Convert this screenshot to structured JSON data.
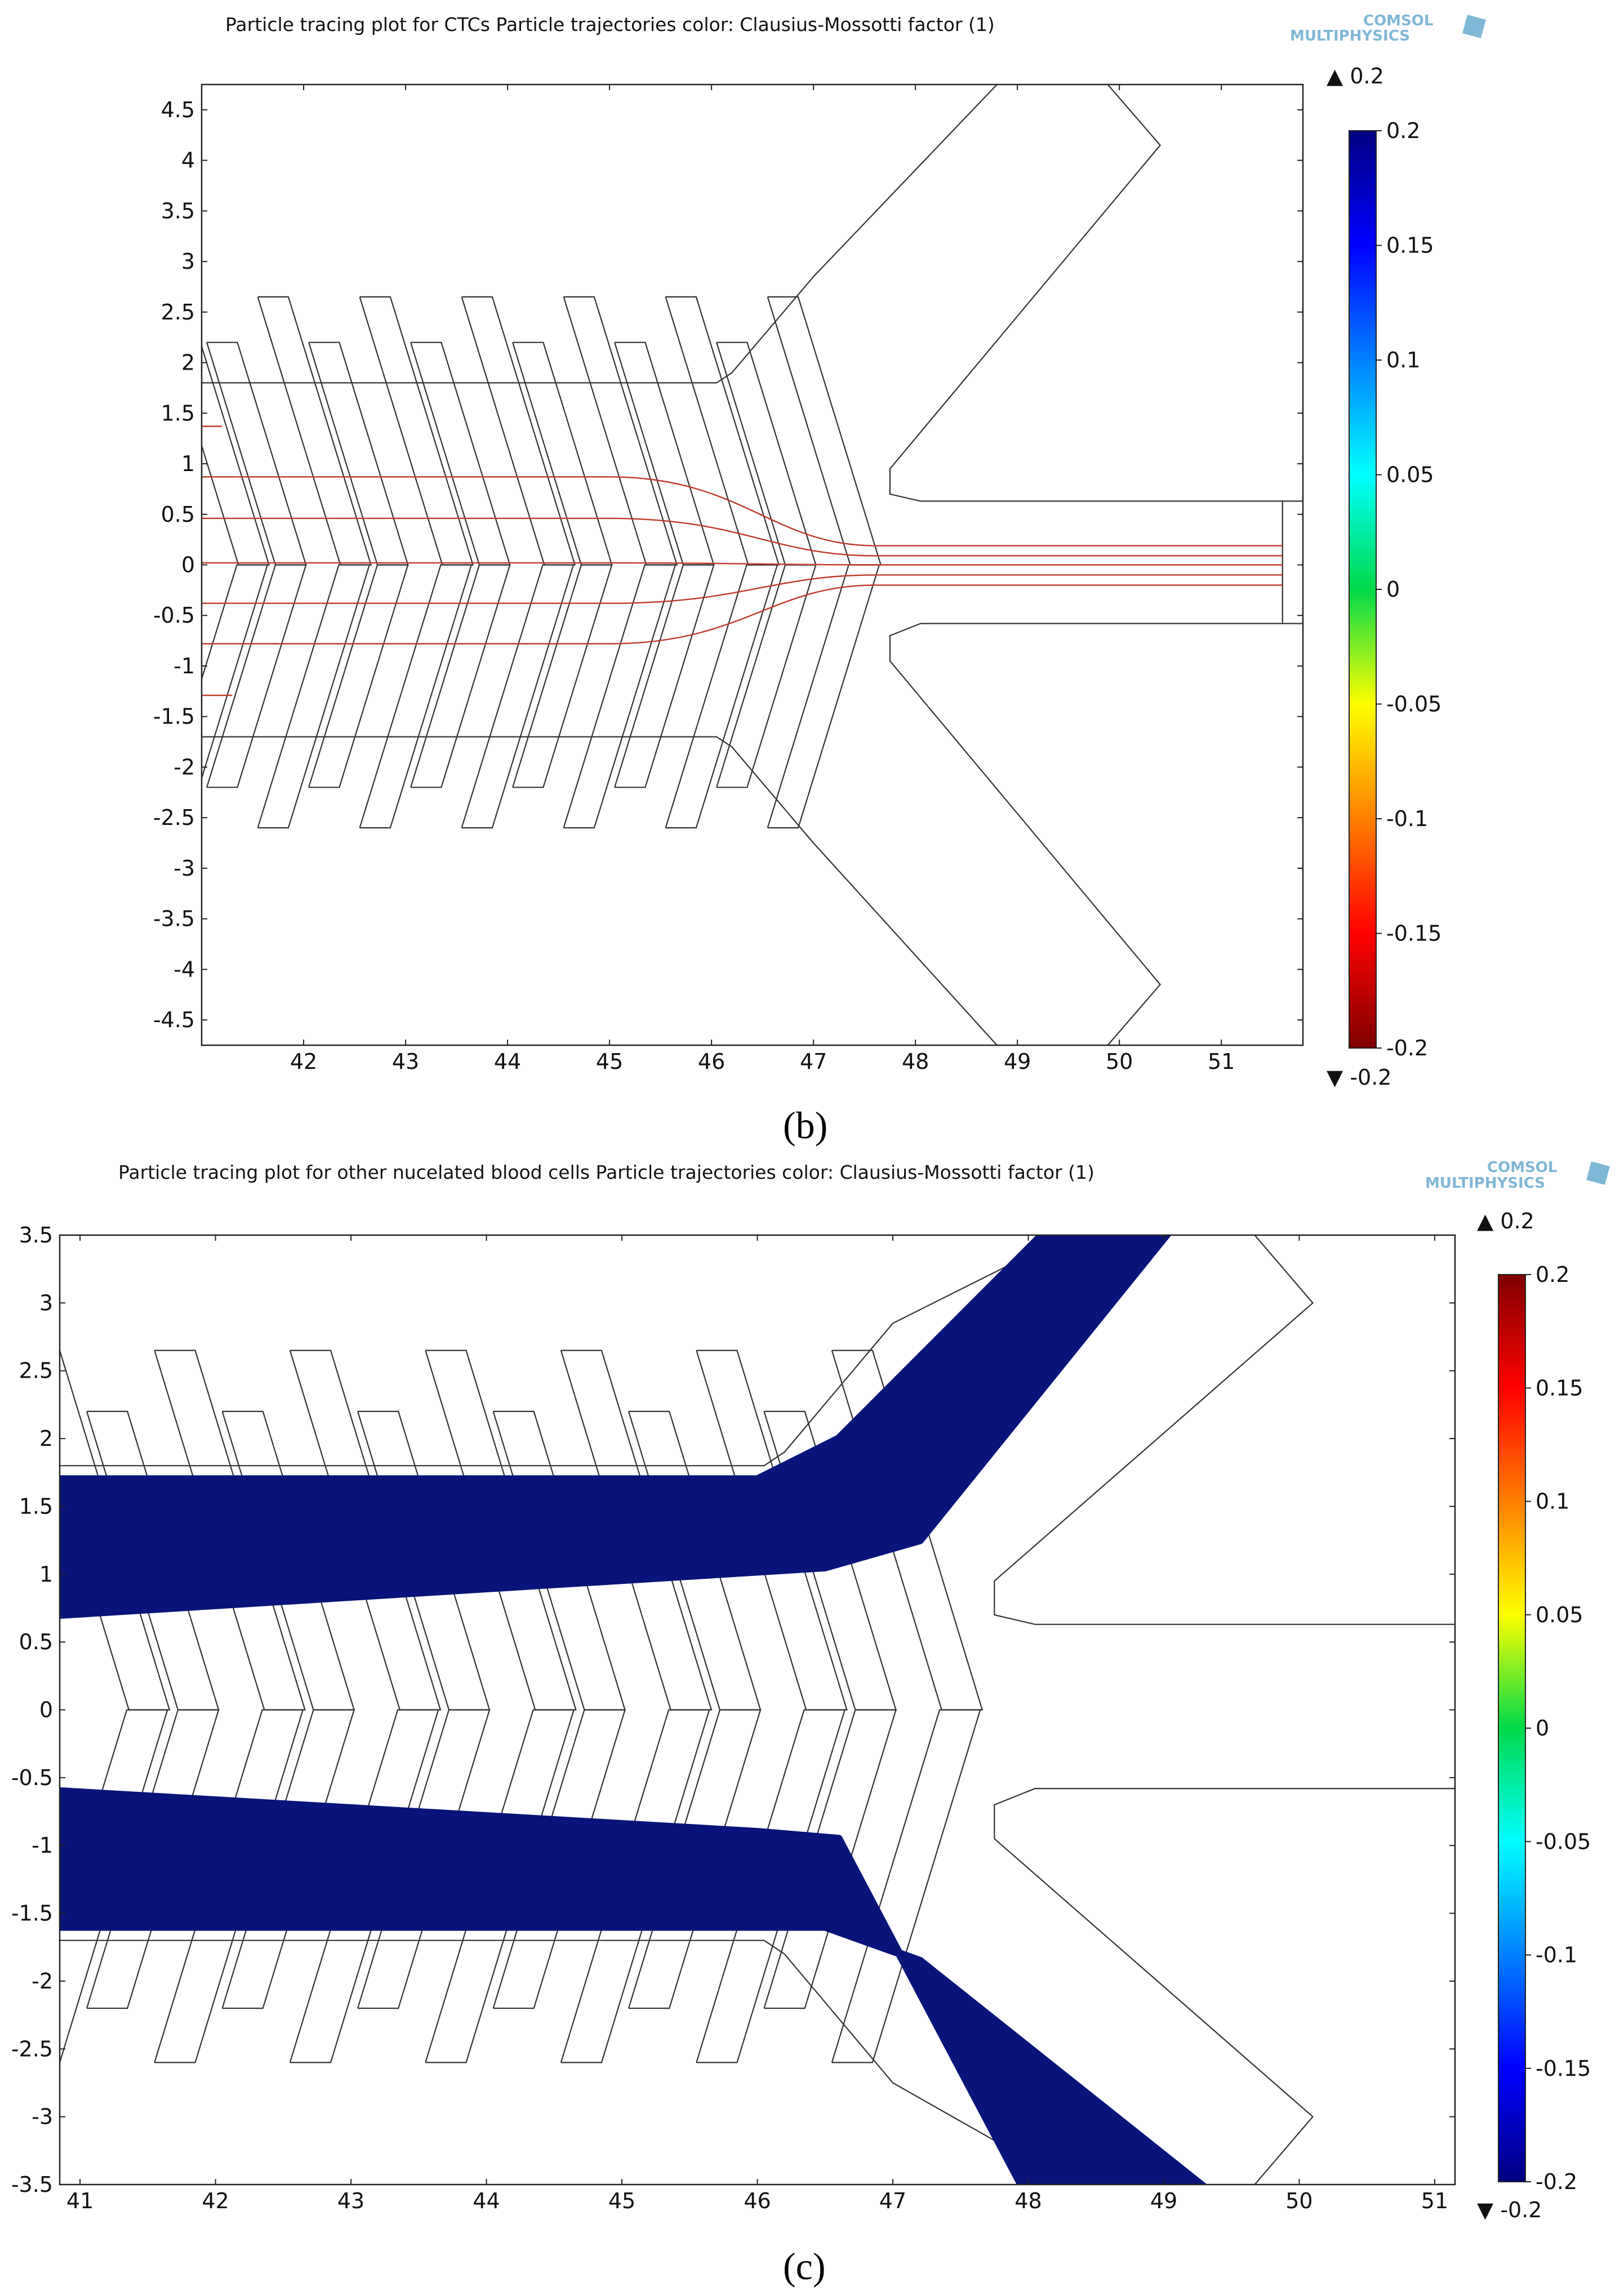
{
  "panels": [
    {
      "id": "b",
      "title": "Particle tracing plot for CTCs   Particle trajectories color: Clausius-Mossotti factor (1)",
      "caption": "(b)",
      "logo": [
        "COMSOL",
        "MULTIPHYSICS"
      ],
      "xlim": [
        41,
        51.8
      ],
      "ylim": [
        -4.75,
        4.75
      ],
      "xticks": [
        "42",
        "43",
        "44",
        "45",
        "46",
        "47",
        "48",
        "49",
        "50",
        "51"
      ],
      "yticks": [
        "4.5",
        "4",
        "3.5",
        "3",
        "2.5",
        "2",
        "1.5",
        "1",
        "0.5",
        "0",
        "-0.5",
        "-1",
        "-1.5",
        "-2",
        "-2.5",
        "-3",
        "-3.5",
        "-4",
        "-4.5"
      ],
      "colorbar": {
        "max_label": "0.2",
        "min_label": "-0.2",
        "ticks": [
          "0.2",
          "0.15",
          "0.1",
          "0.05",
          "0",
          "-0.05",
          "-0.1",
          "-0.15",
          "-0.2"
        ],
        "colormap": "rainbow-reversed"
      }
    },
    {
      "id": "c",
      "title": "Particle tracing plot for other nucelated blood cells   Particle trajectories color: Clausius-Mossotti factor (1)",
      "caption": "(c)",
      "logo": [
        "COMSOL",
        "MULTIPHYSICS"
      ],
      "xlim": [
        40.85,
        51.15
      ],
      "ylim": [
        -3.5,
        3.5
      ],
      "xticks": [
        "41",
        "42",
        "43",
        "44",
        "45",
        "46",
        "47",
        "48",
        "49",
        "50",
        "51"
      ],
      "yticks": [
        "3.5",
        "3",
        "2.5",
        "2",
        "1.5",
        "1",
        "0.5",
        "0",
        "-0.5",
        "-1",
        "-1.5",
        "-2",
        "-2.5",
        "-3",
        "-3.5"
      ],
      "colorbar": {
        "max_label": "0.2",
        "min_label": "-0.2",
        "ticks": [
          "0.2",
          "0.15",
          "0.1",
          "0.05",
          "0",
          "-0.05",
          "-0.1",
          "-0.15",
          "-0.2"
        ],
        "colormap": "rainbow"
      }
    }
  ],
  "chart_data": [
    {
      "type": "scatter",
      "title": "Particle tracing plot for CTCs",
      "subtitle": "Particle trajectories color: Clausius-Mossotti factor (1)",
      "xlim": [
        41,
        51.8
      ],
      "ylim": [
        -4.75,
        4.75
      ],
      "grid": false,
      "trajectory_color": "#c0392b",
      "trajectory_value": -0.19,
      "trajectory_start_y": [
        1.37,
        0.87,
        0.46,
        0.02,
        -0.38,
        -0.78,
        -1.29
      ],
      "trajectory_end_y": [
        0.32,
        0.19,
        0.09,
        0.0,
        -0.1,
        -0.2,
        -0.31
      ],
      "truncated_trajectories": [
        {
          "y": 1.37,
          "x_end": 41.2
        },
        {
          "y": -1.29,
          "x_end": 41.3
        }
      ],
      "colorbar_range": [
        -0.2,
        0.2
      ]
    },
    {
      "type": "scatter",
      "title": "Particle tracing plot for other nucelated blood cells",
      "subtitle": "Particle trajectories color: Clausius-Mossotti factor (1)",
      "xlim": [
        40.85,
        51.15
      ],
      "ylim": [
        -3.5,
        3.5
      ],
      "grid": false,
      "trajectory_color": "#08147a",
      "trajectory_value": -0.2,
      "bands": [
        {
          "name": "upper",
          "y_top": 1.7,
          "y_bottom": 0.7,
          "exit": "upper outlet"
        },
        {
          "name": "lower",
          "y_top": -0.6,
          "y_bottom": -1.6,
          "exit": "lower outlet"
        }
      ],
      "colorbar_range": [
        -0.2,
        0.2
      ]
    }
  ]
}
